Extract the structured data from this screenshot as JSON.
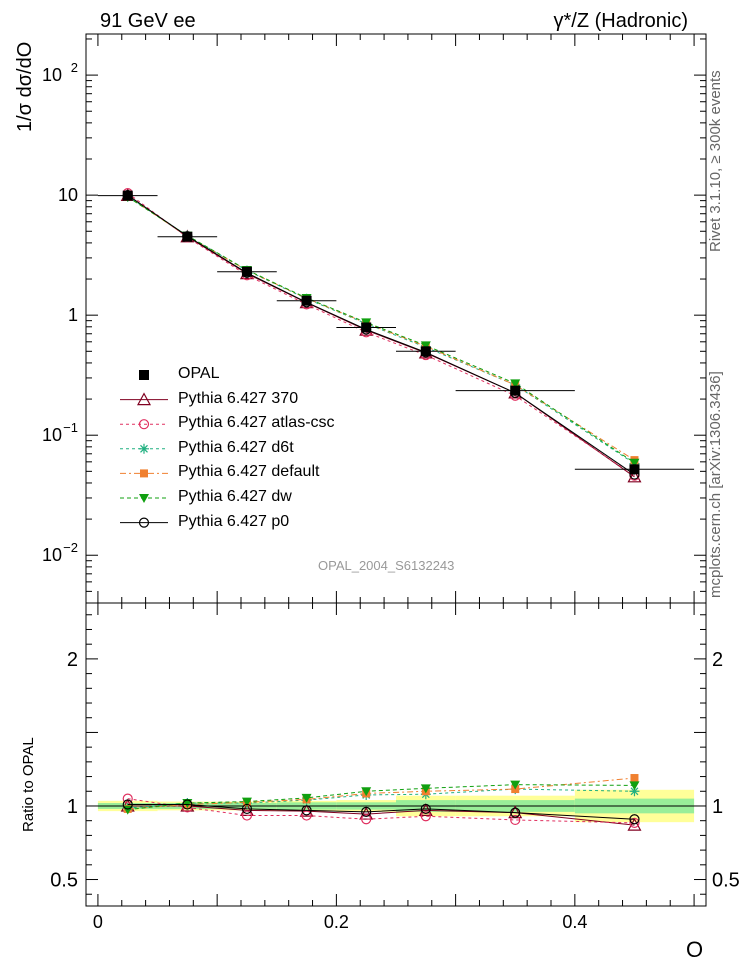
{
  "header": {
    "left": "91 GeV ee",
    "right": "γ*/Z (Hadronic)"
  },
  "side_text": {
    "rivet": "Rivet 3.1.10, ≥ 300k events",
    "mcplots": "mcplots.cern.ch [arXiv:1306.3436]"
  },
  "watermark": "OPAL_2004_S6132243",
  "chart_data": [
    {
      "type": "line",
      "scale": "log",
      "ylabel": "1/σ dσ/dO",
      "ylim": [
        0.004,
        220
      ],
      "xlim": [
        -0.01,
        0.51
      ],
      "ytick_labels": [
        {
          "v": 0.01,
          "label": "10",
          "exp": "−2"
        },
        {
          "v": 0.1,
          "label": "10",
          "exp": "−1"
        },
        {
          "v": 1,
          "label": "1",
          "exp": ""
        },
        {
          "v": 10,
          "label": "10",
          "exp": ""
        },
        {
          "v": 100,
          "label": "10",
          "exp": "2"
        }
      ],
      "x": [
        0.025,
        0.075,
        0.125,
        0.175,
        0.225,
        0.275,
        0.35,
        0.45
      ],
      "xerr": [
        0.025,
        0.025,
        0.025,
        0.025,
        0.025,
        0.025,
        0.05,
        0.05
      ],
      "data": {
        "name": "OPAL",
        "values": [
          9.9,
          4.5,
          2.3,
          1.32,
          0.79,
          0.5,
          0.235,
          0.052
        ]
      },
      "series": [
        {
          "name": "Pythia 6.427 370",
          "color": "#800020",
          "dash": "",
          "marker": "triangle-open",
          "values": [
            9.95,
            4.5,
            2.22,
            1.27,
            0.75,
            0.485,
            0.225,
            0.045
          ]
        },
        {
          "name": "Pythia 6.427 atlas-csc",
          "color": "#e03060",
          "dash": "3,3",
          "marker": "circle-open",
          "values": [
            10.4,
            4.45,
            2.15,
            1.23,
            0.72,
            0.465,
            0.213,
            0.046
          ]
        },
        {
          "name": "Pythia 6.427 d6t",
          "color": "#20b080",
          "dash": "3,3",
          "marker": "star",
          "values": [
            9.75,
            4.6,
            2.35,
            1.37,
            0.85,
            0.54,
            0.262,
            0.058
          ]
        },
        {
          "name": "Pythia 6.427 default",
          "color": "#f08030",
          "dash": "6,3,2,3",
          "marker": "square",
          "values": [
            9.7,
            4.55,
            2.36,
            1.38,
            0.86,
            0.55,
            0.262,
            0.062
          ]
        },
        {
          "name": "Pythia 6.427 dw",
          "color": "#10a010",
          "dash": "4,3",
          "marker": "triangle-down",
          "values": [
            9.65,
            4.6,
            2.38,
            1.39,
            0.87,
            0.56,
            0.27,
            0.059
          ]
        },
        {
          "name": "Pythia 6.427 p0",
          "color": "#000000",
          "dash": "",
          "marker": "circle-open",
          "values": [
            10.0,
            4.55,
            2.25,
            1.28,
            0.76,
            0.49,
            0.225,
            0.047
          ]
        }
      ]
    },
    {
      "type": "line",
      "ylabel": "Ratio to OPAL",
      "xlabel": "O",
      "ylim": [
        0.32,
        2.38
      ],
      "xlim": [
        -0.01,
        0.51
      ],
      "xticks": [
        0,
        0.2,
        0.4
      ],
      "xtick_labels": [
        "0",
        "0.2",
        "0.4"
      ],
      "yticks": [
        0.5,
        1,
        2
      ],
      "ytick_labels": [
        "0.5",
        "1",
        "2"
      ],
      "x": [
        0.025,
        0.075,
        0.125,
        0.175,
        0.225,
        0.275,
        0.35,
        0.45
      ],
      "band_inner": [
        0.02,
        0.02,
        0.02,
        0.025,
        0.025,
        0.04,
        0.04,
        0.05
      ],
      "band_outer": [
        0.035,
        0.03,
        0.03,
        0.035,
        0.04,
        0.07,
        0.07,
        0.11
      ],
      "series_ratios": {
        "Pythia 6.427 370": [
          1.0,
          1.0,
          0.97,
          0.965,
          0.945,
          0.97,
          0.955,
          0.87
        ],
        "Pythia 6.427 atlas-csc": [
          1.05,
          0.99,
          0.935,
          0.935,
          0.91,
          0.93,
          0.905,
          0.885
        ],
        "Pythia 6.427 d6t": [
          0.985,
          1.02,
          1.02,
          1.04,
          1.075,
          1.08,
          1.115,
          1.1
        ],
        "Pythia 6.427 default": [
          0.98,
          1.01,
          1.025,
          1.045,
          1.085,
          1.1,
          1.115,
          1.19
        ],
        "Pythia 6.427 dw": [
          0.975,
          1.02,
          1.03,
          1.055,
          1.1,
          1.12,
          1.145,
          1.14
        ],
        "Pythia 6.427 p0": [
          1.01,
          1.01,
          0.98,
          0.97,
          0.96,
          0.98,
          0.955,
          0.91
        ]
      }
    }
  ]
}
